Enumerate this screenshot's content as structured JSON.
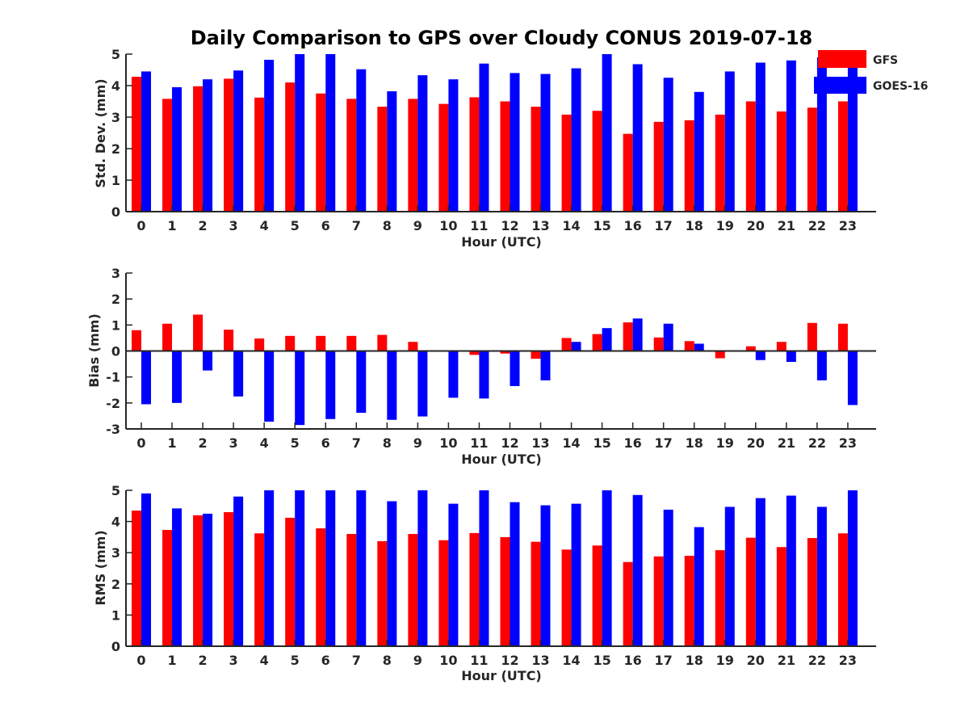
{
  "colors": {
    "gfs": "#ff0000",
    "goes": "#0000ff",
    "axis": "#262626"
  },
  "chart_data": [
    {
      "type": "bar",
      "title": "Daily Comparison to GPS over Cloudy CONUS 2019-07-18",
      "xlabel": "Hour (UTC)",
      "ylabel": "Std. Dev. (mm)",
      "ylim": [
        0,
        5
      ],
      "yticks": [
        0,
        1,
        2,
        3,
        4,
        5
      ],
      "categories": [
        "0",
        "1",
        "2",
        "3",
        "4",
        "5",
        "6",
        "7",
        "8",
        "9",
        "10",
        "11",
        "12",
        "13",
        "14",
        "15",
        "16",
        "17",
        "18",
        "19",
        "20",
        "21",
        "22",
        "23"
      ],
      "legend": {
        "placement": "top-right"
      },
      "series": [
        {
          "name": "GFS",
          "values": [
            4.28,
            3.58,
            3.98,
            4.22,
            3.62,
            4.1,
            3.75,
            3.58,
            3.33,
            3.58,
            3.42,
            3.63,
            3.5,
            3.33,
            3.08,
            3.2,
            2.47,
            2.85,
            2.9,
            3.08,
            3.5,
            3.18,
            3.3,
            3.5
          ]
        },
        {
          "name": "GOES-16",
          "values": [
            4.45,
            3.95,
            4.2,
            4.48,
            4.82,
            5.0,
            5.0,
            4.52,
            3.82,
            4.33,
            4.2,
            4.7,
            4.4,
            4.37,
            4.55,
            5.0,
            4.68,
            4.25,
            3.8,
            4.45,
            4.73,
            4.8,
            4.9,
            4.95
          ]
        }
      ]
    },
    {
      "type": "bar",
      "xlabel": "Hour (UTC)",
      "ylabel": "Bias (mm)",
      "ylim": [
        -3,
        3
      ],
      "yticks": [
        -3,
        -2,
        -1,
        0,
        1,
        2,
        3
      ],
      "categories": [
        "0",
        "1",
        "2",
        "3",
        "4",
        "5",
        "6",
        "7",
        "8",
        "9",
        "10",
        "11",
        "12",
        "13",
        "14",
        "15",
        "16",
        "17",
        "18",
        "19",
        "20",
        "21",
        "22",
        "23"
      ],
      "series": [
        {
          "name": "GFS",
          "values": [
            0.8,
            1.05,
            1.4,
            0.82,
            0.48,
            0.58,
            0.58,
            0.58,
            0.62,
            0.35,
            0.0,
            -0.15,
            -0.1,
            -0.3,
            0.5,
            0.65,
            1.1,
            0.52,
            0.38,
            -0.28,
            0.18,
            0.35,
            1.08,
            1.05
          ]
        },
        {
          "name": "GOES-16",
          "values": [
            -2.05,
            -2.0,
            -0.75,
            -1.75,
            -2.72,
            -2.85,
            -2.62,
            -2.38,
            -2.65,
            -2.52,
            -1.8,
            -1.83,
            -1.35,
            -1.13,
            0.35,
            0.88,
            1.25,
            1.05,
            0.28,
            0.0,
            -0.35,
            -0.42,
            -1.13,
            -2.08
          ]
        }
      ]
    },
    {
      "type": "bar",
      "xlabel": "Hour (UTC)",
      "ylabel": "RMS (mm)",
      "ylim": [
        0,
        5
      ],
      "yticks": [
        0,
        1,
        2,
        3,
        4,
        5
      ],
      "categories": [
        "0",
        "1",
        "2",
        "3",
        "4",
        "5",
        "6",
        "7",
        "8",
        "9",
        "10",
        "11",
        "12",
        "13",
        "14",
        "15",
        "16",
        "17",
        "18",
        "19",
        "20",
        "21",
        "22",
        "23"
      ],
      "series": [
        {
          "name": "GFS",
          "values": [
            4.35,
            3.73,
            4.2,
            4.3,
            3.62,
            4.12,
            3.78,
            3.6,
            3.37,
            3.6,
            3.4,
            3.63,
            3.5,
            3.35,
            3.1,
            3.23,
            2.7,
            2.88,
            2.9,
            3.08,
            3.48,
            3.18,
            3.47,
            3.62
          ]
        },
        {
          "name": "GOES-16",
          "values": [
            4.9,
            4.42,
            4.25,
            4.8,
            5.0,
            5.0,
            5.0,
            5.0,
            4.65,
            5.0,
            4.57,
            5.0,
            4.62,
            4.52,
            4.57,
            5.0,
            4.85,
            4.38,
            3.82,
            4.47,
            4.75,
            4.83,
            4.47,
            5.0
          ]
        }
      ]
    }
  ]
}
